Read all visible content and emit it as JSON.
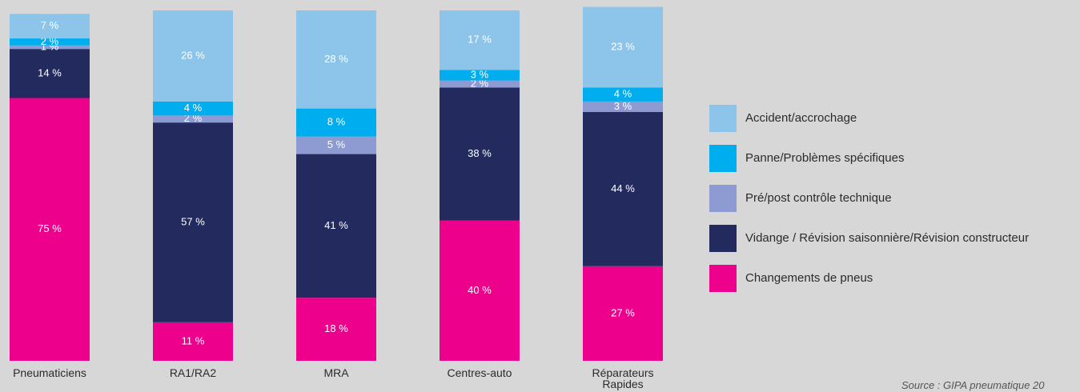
{
  "chart_data": {
    "type": "stacked-bar",
    "categories": [
      "Pneumaticiens",
      "RA1/RA2",
      "MRA",
      "Centres-auto",
      "Réparateurs Rapides"
    ],
    "series": [
      {
        "name": "Changements de pneus",
        "color": "#ec008c",
        "values": [
          75,
          11,
          18,
          40,
          27
        ],
        "value_labels": [
          "75 %",
          "11 %",
          "18 %",
          "40 %",
          "27 %"
        ]
      },
      {
        "name": "Vidange / Révision saisonnière/Révision constructeur",
        "color": "#232a5e",
        "values": [
          14,
          57,
          41,
          38,
          44
        ],
        "value_labels": [
          "14 %",
          "57 %",
          "41 %",
          "38 %",
          "44 %"
        ]
      },
      {
        "name": "Pré/post contrôle technique",
        "color": "#8e9bd2",
        "values": [
          1,
          2,
          5,
          2,
          3
        ],
        "value_labels": [
          "1 %",
          "2 %",
          "5 %",
          "2 %",
          "3 %"
        ]
      },
      {
        "name": "Panne/Problèmes spécifiques",
        "color": "#00aeef",
        "values": [
          2,
          4,
          8,
          3,
          4
        ],
        "value_labels": [
          "2 %",
          "4 %",
          "8 %",
          "3 %",
          "4 %"
        ]
      },
      {
        "name": "Accident/accrochage",
        "color": "#8dc5ea",
        "values": [
          7,
          26,
          28,
          17,
          23
        ],
        "value_labels": [
          "7 %",
          "26 %",
          "28 %",
          "17 %",
          "23 %"
        ]
      }
    ],
    "ylim": [
      0,
      100
    ],
    "legend": "right",
    "source": "Source : GIPA pneumatique 20"
  }
}
